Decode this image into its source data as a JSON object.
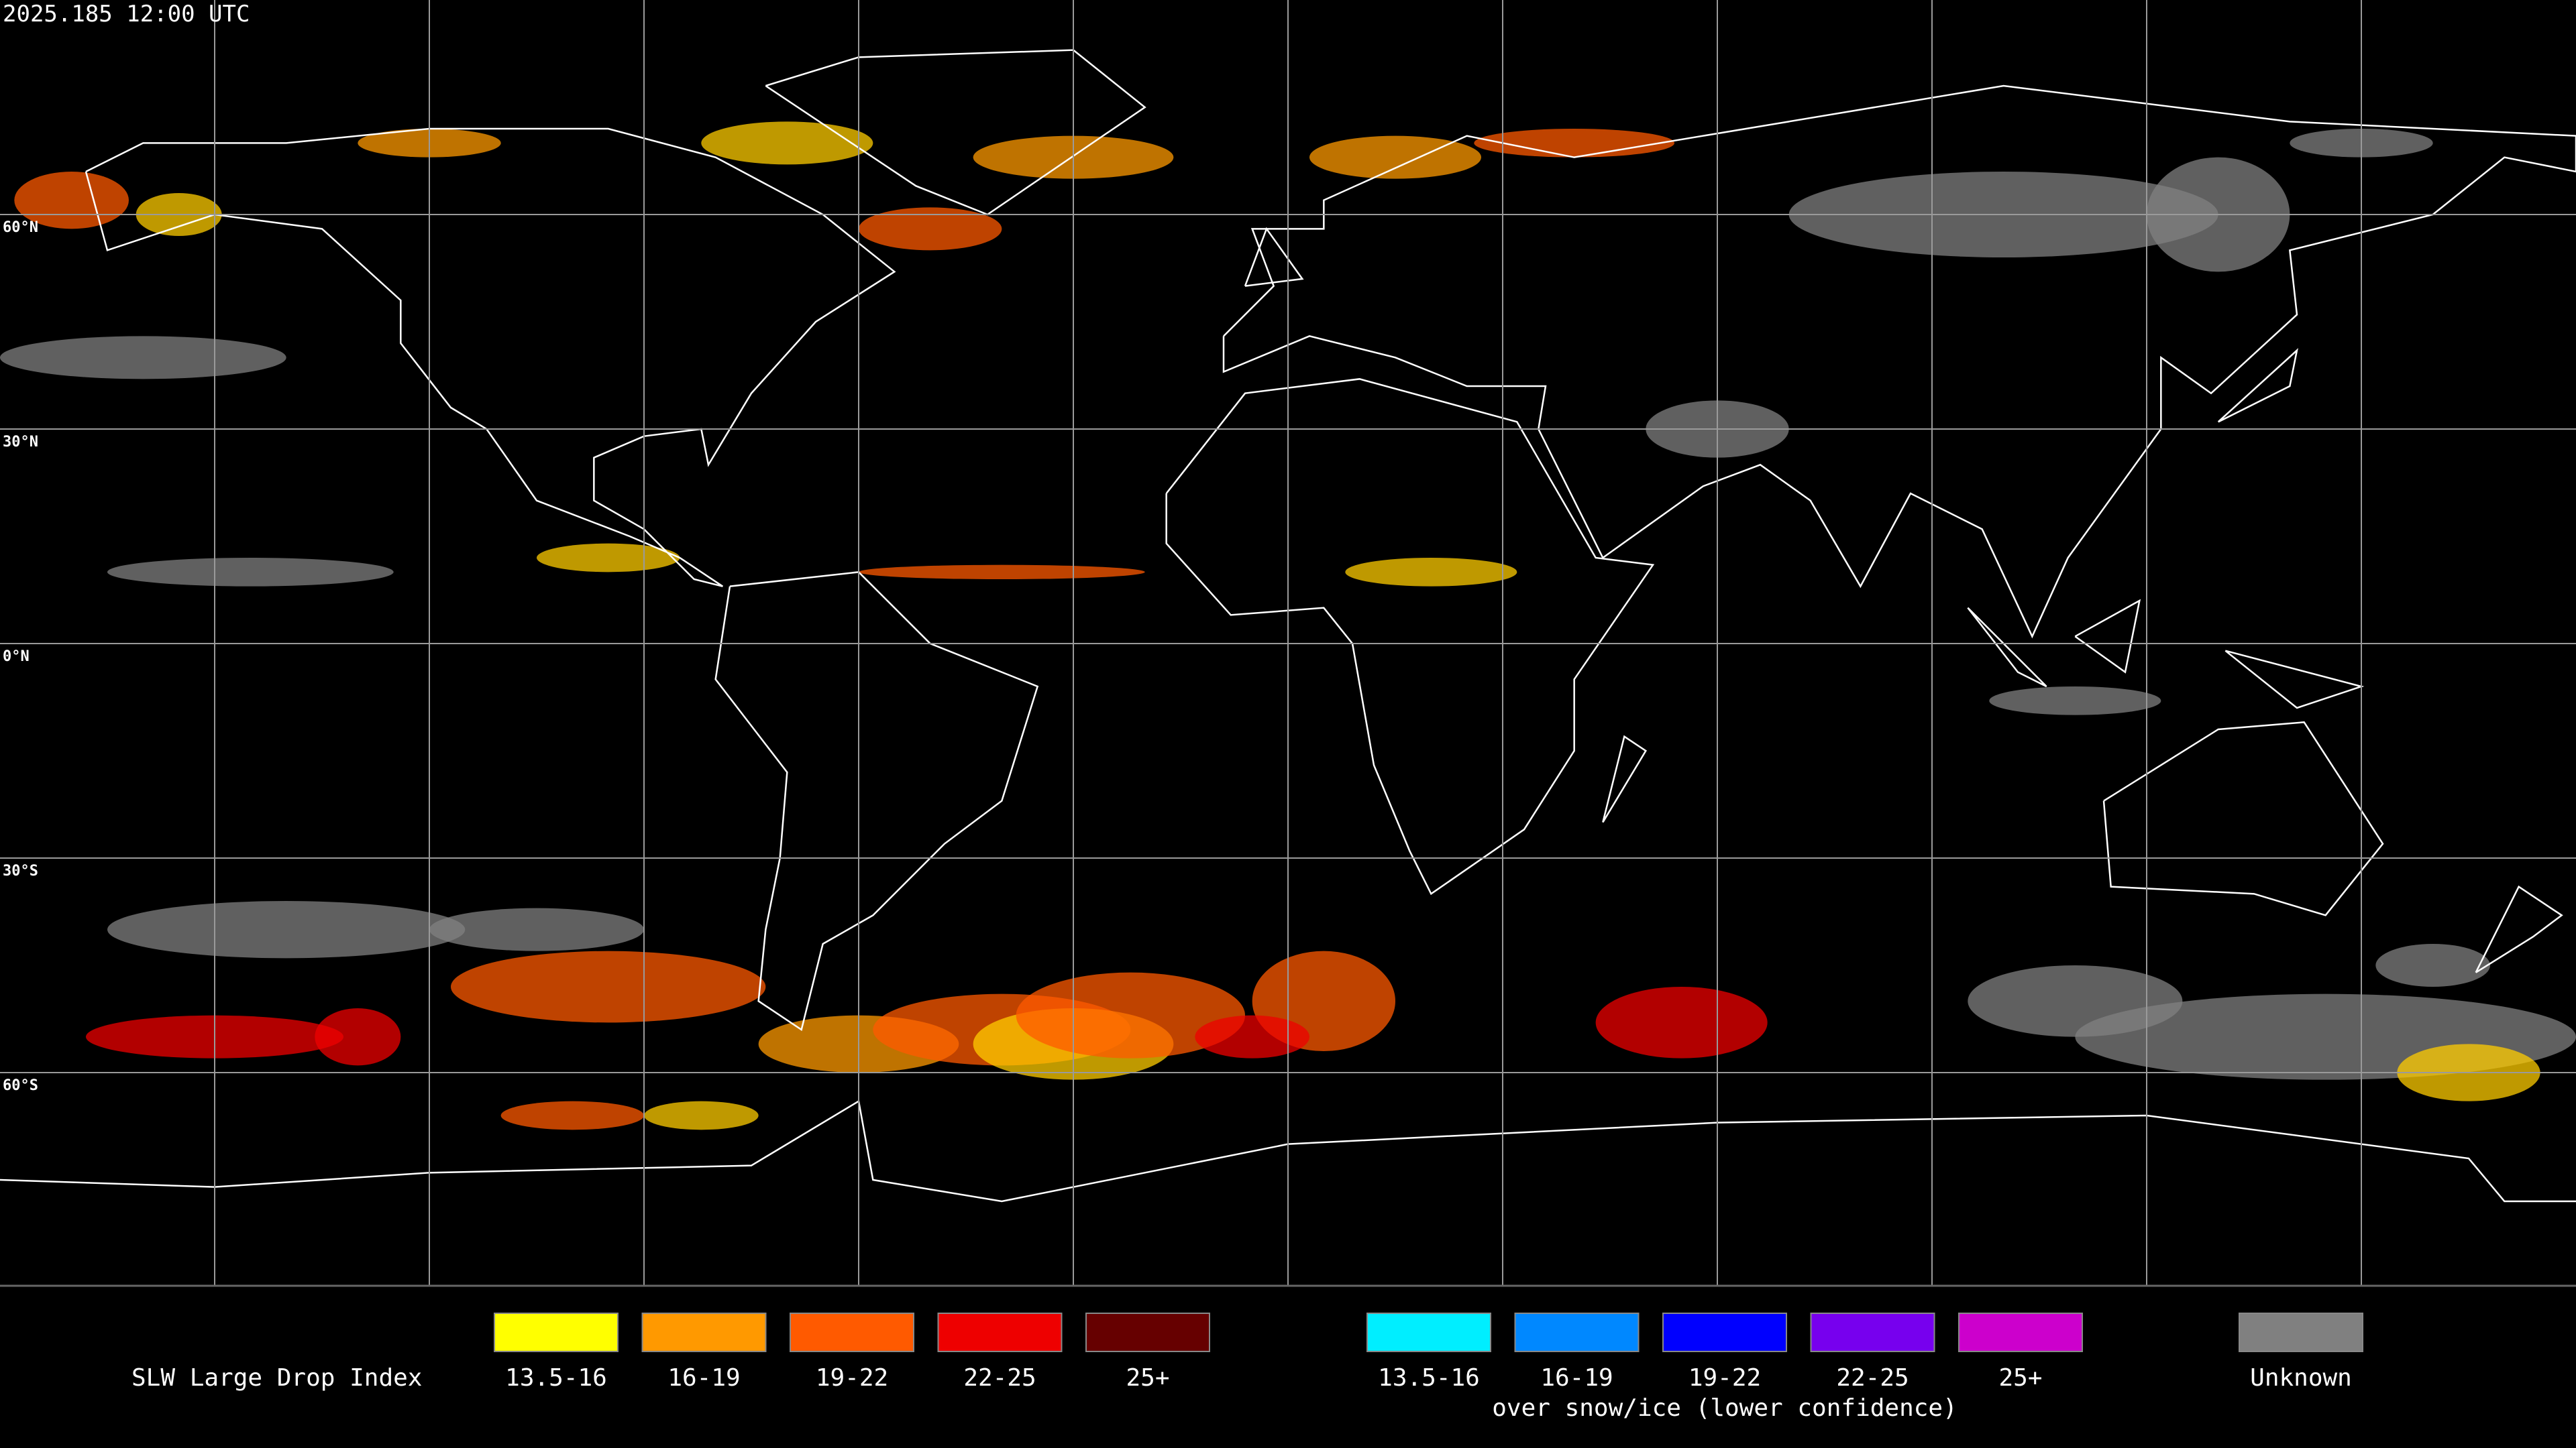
{
  "header": {
    "timestamp": "2025.185 12:00 UTC"
  },
  "map": {
    "lat_labels": [
      "60°N",
      "30°N",
      "0°N",
      "30°S",
      "60°S"
    ]
  },
  "legend": {
    "title": "SLW Large Drop Index",
    "groups": [
      {
        "items": [
          {
            "label": "13.5-16",
            "color": "#ffff00"
          },
          {
            "label": "16-19",
            "color": "#ff9900"
          },
          {
            "label": "19-22",
            "color": "#ff5a00"
          },
          {
            "label": "22-25",
            "color": "#ee0000"
          },
          {
            "label": "25+",
            "color": "#660000"
          }
        ]
      },
      {
        "caption": "over snow/ice (lower confidence)",
        "items": [
          {
            "label": "13.5-16",
            "color": "#00eeff"
          },
          {
            "label": "16-19",
            "color": "#0088ff"
          },
          {
            "label": "19-22",
            "color": "#0000ff"
          },
          {
            "label": "22-25",
            "color": "#7700ee"
          },
          {
            "label": "25+",
            "color": "#cc00cc"
          }
        ]
      },
      {
        "items": [
          {
            "label": "Unknown",
            "color": "#808080"
          }
        ]
      }
    ]
  }
}
